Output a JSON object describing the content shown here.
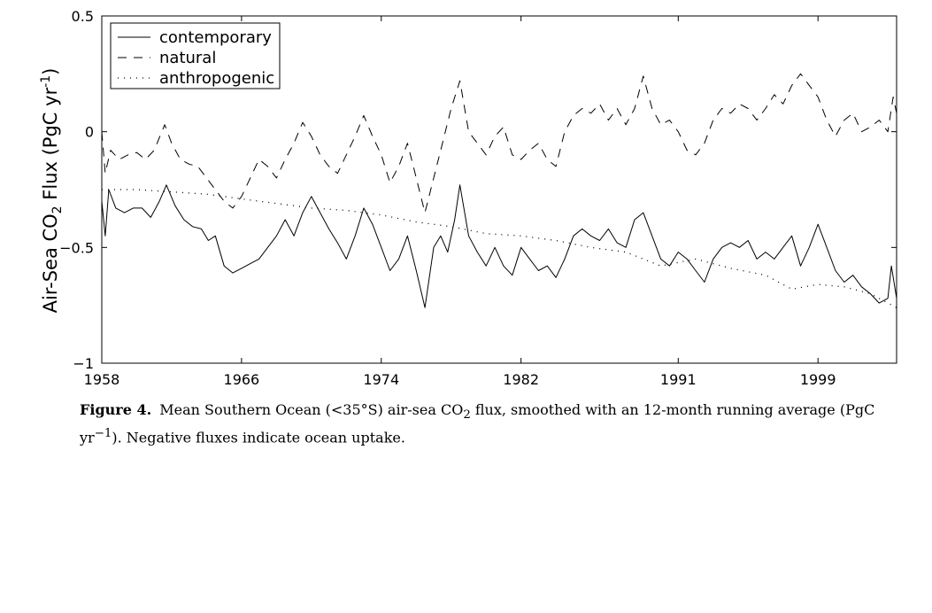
{
  "chart_data": {
    "type": "line",
    "title": "",
    "xlabel": "",
    "ylabel_parts": [
      "Air-Sea CO",
      "2",
      " Flux (PgC yr",
      "-1",
      ")"
    ],
    "xlim": [
      1958,
      2003.5
    ],
    "ylim": [
      -1,
      0.5
    ],
    "xticks": [
      1958,
      1966,
      1974,
      1982,
      1991,
      1999
    ],
    "xtick_labels": [
      "1958",
      "1966",
      "1974",
      "1982",
      "1991",
      "1999"
    ],
    "yticks": [
      0.5,
      0,
      -0.5,
      -1
    ],
    "ytick_labels": [
      "0.5",
      "0",
      "−0.5",
      "−1"
    ],
    "legend_position": "top-left",
    "grid": false,
    "series": [
      {
        "name": "contemporary",
        "style": "solid",
        "color": "#000000",
        "points": [
          [
            1958.0,
            -0.3
          ],
          [
            1958.2,
            -0.45
          ],
          [
            1958.4,
            -0.25
          ],
          [
            1958.8,
            -0.33
          ],
          [
            1959.3,
            -0.35
          ],
          [
            1959.8,
            -0.33
          ],
          [
            1960.3,
            -0.33
          ],
          [
            1960.8,
            -0.37
          ],
          [
            1961.3,
            -0.3
          ],
          [
            1961.7,
            -0.23
          ],
          [
            1962.2,
            -0.32
          ],
          [
            1962.7,
            -0.38
          ],
          [
            1963.2,
            -0.41
          ],
          [
            1963.7,
            -0.42
          ],
          [
            1964.1,
            -0.47
          ],
          [
            1964.5,
            -0.45
          ],
          [
            1965.0,
            -0.58
          ],
          [
            1965.5,
            -0.61
          ],
          [
            1966.0,
            -0.59
          ],
          [
            1966.5,
            -0.57
          ],
          [
            1967.0,
            -0.55
          ],
          [
            1967.5,
            -0.5
          ],
          [
            1968.0,
            -0.45
          ],
          [
            1968.5,
            -0.38
          ],
          [
            1969.0,
            -0.45
          ],
          [
            1969.5,
            -0.35
          ],
          [
            1970.0,
            -0.28
          ],
          [
            1970.5,
            -0.35
          ],
          [
            1971.0,
            -0.42
          ],
          [
            1971.5,
            -0.48
          ],
          [
            1972.0,
            -0.55
          ],
          [
            1972.5,
            -0.45
          ],
          [
            1973.0,
            -0.33
          ],
          [
            1973.5,
            -0.4
          ],
          [
            1974.0,
            -0.5
          ],
          [
            1974.5,
            -0.6
          ],
          [
            1975.0,
            -0.55
          ],
          [
            1975.5,
            -0.45
          ],
          [
            1976.0,
            -0.6
          ],
          [
            1976.5,
            -0.76
          ],
          [
            1977.0,
            -0.5
          ],
          [
            1977.4,
            -0.45
          ],
          [
            1977.8,
            -0.52
          ],
          [
            1978.2,
            -0.38
          ],
          [
            1978.5,
            -0.23
          ],
          [
            1979.0,
            -0.45
          ],
          [
            1979.5,
            -0.52
          ],
          [
            1980.0,
            -0.58
          ],
          [
            1980.5,
            -0.5
          ],
          [
            1981.0,
            -0.58
          ],
          [
            1981.5,
            -0.62
          ],
          [
            1982.0,
            -0.5
          ],
          [
            1982.5,
            -0.55
          ],
          [
            1983.0,
            -0.6
          ],
          [
            1983.5,
            -0.58
          ],
          [
            1984.0,
            -0.63
          ],
          [
            1984.5,
            -0.55
          ],
          [
            1985.0,
            -0.45
          ],
          [
            1985.5,
            -0.42
          ],
          [
            1986.0,
            -0.45
          ],
          [
            1986.5,
            -0.47
          ],
          [
            1987.0,
            -0.42
          ],
          [
            1987.5,
            -0.48
          ],
          [
            1988.0,
            -0.5
          ],
          [
            1988.5,
            -0.38
          ],
          [
            1989.0,
            -0.35
          ],
          [
            1989.5,
            -0.45
          ],
          [
            1990.0,
            -0.55
          ],
          [
            1990.5,
            -0.58
          ],
          [
            1991.0,
            -0.52
          ],
          [
            1991.5,
            -0.55
          ],
          [
            1992.0,
            -0.6
          ],
          [
            1992.5,
            -0.65
          ],
          [
            1993.0,
            -0.55
          ],
          [
            1993.5,
            -0.5
          ],
          [
            1994.0,
            -0.48
          ],
          [
            1994.5,
            -0.5
          ],
          [
            1995.0,
            -0.47
          ],
          [
            1995.5,
            -0.55
          ],
          [
            1996.0,
            -0.52
          ],
          [
            1996.5,
            -0.55
          ],
          [
            1997.0,
            -0.5
          ],
          [
            1997.5,
            -0.45
          ],
          [
            1998.0,
            -0.58
          ],
          [
            1998.5,
            -0.5
          ],
          [
            1999.0,
            -0.4
          ],
          [
            1999.5,
            -0.5
          ],
          [
            2000.0,
            -0.6
          ],
          [
            2000.5,
            -0.65
          ],
          [
            2001.0,
            -0.62
          ],
          [
            2001.5,
            -0.67
          ],
          [
            2002.0,
            -0.7
          ],
          [
            2002.5,
            -0.74
          ],
          [
            2003.0,
            -0.72
          ],
          [
            2003.2,
            -0.58
          ],
          [
            2003.5,
            -0.72
          ]
        ]
      },
      {
        "name": "natural",
        "style": "dashed",
        "color": "#000000",
        "points": [
          [
            1958.0,
            0.0
          ],
          [
            1958.2,
            -0.18
          ],
          [
            1958.5,
            -0.08
          ],
          [
            1959.0,
            -0.12
          ],
          [
            1959.5,
            -0.1
          ],
          [
            1960.0,
            -0.09
          ],
          [
            1960.5,
            -0.12
          ],
          [
            1961.0,
            -0.08
          ],
          [
            1961.6,
            0.03
          ],
          [
            1962.0,
            -0.05
          ],
          [
            1962.5,
            -0.12
          ],
          [
            1963.0,
            -0.14
          ],
          [
            1963.5,
            -0.15
          ],
          [
            1964.0,
            -0.2
          ],
          [
            1964.5,
            -0.25
          ],
          [
            1965.0,
            -0.3
          ],
          [
            1965.5,
            -0.33
          ],
          [
            1966.0,
            -0.28
          ],
          [
            1966.5,
            -0.2
          ],
          [
            1967.0,
            -0.12
          ],
          [
            1967.5,
            -0.15
          ],
          [
            1968.0,
            -0.2
          ],
          [
            1968.5,
            -0.12
          ],
          [
            1969.0,
            -0.05
          ],
          [
            1969.5,
            0.04
          ],
          [
            1970.0,
            -0.02
          ],
          [
            1970.5,
            -0.1
          ],
          [
            1971.0,
            -0.15
          ],
          [
            1971.5,
            -0.18
          ],
          [
            1972.0,
            -0.1
          ],
          [
            1972.5,
            -0.02
          ],
          [
            1973.0,
            0.07
          ],
          [
            1973.5,
            -0.02
          ],
          [
            1974.0,
            -0.1
          ],
          [
            1974.5,
            -0.22
          ],
          [
            1975.0,
            -0.15
          ],
          [
            1975.5,
            -0.05
          ],
          [
            1976.0,
            -0.2
          ],
          [
            1976.5,
            -0.35
          ],
          [
            1977.0,
            -0.2
          ],
          [
            1977.5,
            -0.05
          ],
          [
            1978.0,
            0.1
          ],
          [
            1978.5,
            0.22
          ],
          [
            1979.0,
            0.0
          ],
          [
            1979.5,
            -0.05
          ],
          [
            1980.0,
            -0.1
          ],
          [
            1980.5,
            -0.02
          ],
          [
            1981.0,
            0.02
          ],
          [
            1981.5,
            -0.1
          ],
          [
            1982.0,
            -0.12
          ],
          [
            1982.5,
            -0.08
          ],
          [
            1983.0,
            -0.05
          ],
          [
            1983.5,
            -0.12
          ],
          [
            1984.0,
            -0.15
          ],
          [
            1984.5,
            0.0
          ],
          [
            1985.0,
            0.07
          ],
          [
            1985.5,
            0.1
          ],
          [
            1986.0,
            0.08
          ],
          [
            1986.5,
            0.12
          ],
          [
            1987.0,
            0.05
          ],
          [
            1987.5,
            0.1
          ],
          [
            1988.0,
            0.03
          ],
          [
            1988.5,
            0.1
          ],
          [
            1989.0,
            0.24
          ],
          [
            1989.5,
            0.1
          ],
          [
            1990.0,
            0.03
          ],
          [
            1990.5,
            0.05
          ],
          [
            1991.0,
            0.0
          ],
          [
            1991.5,
            -0.08
          ],
          [
            1992.0,
            -0.1
          ],
          [
            1992.5,
            -0.05
          ],
          [
            1993.0,
            0.05
          ],
          [
            1993.5,
            0.1
          ],
          [
            1994.0,
            0.08
          ],
          [
            1994.5,
            0.12
          ],
          [
            1995.0,
            0.1
          ],
          [
            1995.5,
            0.05
          ],
          [
            1996.0,
            0.1
          ],
          [
            1996.5,
            0.16
          ],
          [
            1997.0,
            0.12
          ],
          [
            1997.5,
            0.2
          ],
          [
            1998.0,
            0.25
          ],
          [
            1998.5,
            0.2
          ],
          [
            1999.0,
            0.15
          ],
          [
            1999.5,
            0.05
          ],
          [
            2000.0,
            -0.02
          ],
          [
            2000.5,
            0.05
          ],
          [
            2001.0,
            0.08
          ],
          [
            2001.5,
            0.0
          ],
          [
            2002.0,
            0.02
          ],
          [
            2002.5,
            0.05
          ],
          [
            2003.0,
            0.0
          ],
          [
            2003.3,
            0.15
          ],
          [
            2003.5,
            0.08
          ]
        ]
      },
      {
        "name": "anthropogenic",
        "style": "dotted",
        "color": "#000000",
        "points": [
          [
            1958.0,
            -0.25
          ],
          [
            1960.0,
            -0.25
          ],
          [
            1962.0,
            -0.26
          ],
          [
            1964.0,
            -0.27
          ],
          [
            1966.0,
            -0.29
          ],
          [
            1968.0,
            -0.31
          ],
          [
            1970.0,
            -0.33
          ],
          [
            1972.0,
            -0.34
          ],
          [
            1974.0,
            -0.36
          ],
          [
            1976.0,
            -0.39
          ],
          [
            1978.0,
            -0.41
          ],
          [
            1980.0,
            -0.44
          ],
          [
            1982.0,
            -0.45
          ],
          [
            1984.0,
            -0.47
          ],
          [
            1986.0,
            -0.5
          ],
          [
            1988.0,
            -0.52
          ],
          [
            1990.0,
            -0.58
          ],
          [
            1992.0,
            -0.55
          ],
          [
            1994.0,
            -0.59
          ],
          [
            1996.0,
            -0.62
          ],
          [
            1997.5,
            -0.68
          ],
          [
            1999.0,
            -0.66
          ],
          [
            2000.5,
            -0.67
          ],
          [
            2002.0,
            -0.7
          ],
          [
            2003.5,
            -0.76
          ]
        ]
      }
    ]
  },
  "caption": {
    "label": "Figure 4.",
    "text_1": "Mean Southern Ocean (<35°S) air-sea CO",
    "sub_1": "2",
    "text_2": " flux, smoothed with an 12-month running average (PgC yr",
    "sup_1": "−1",
    "text_3": "). Negative fluxes indicate ocean uptake."
  }
}
